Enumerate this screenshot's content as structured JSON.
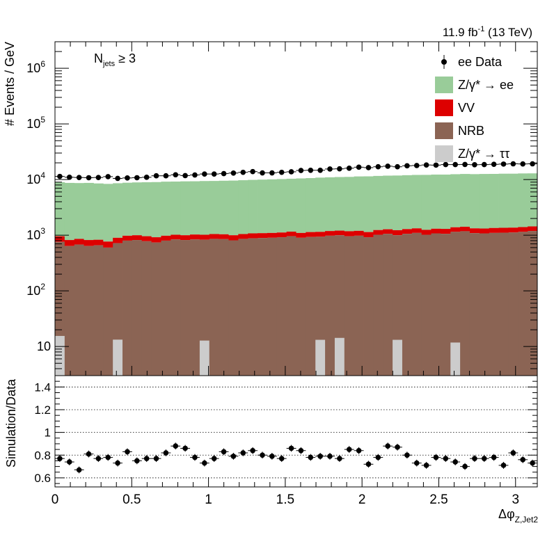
{
  "lumi_label": "11.9 fb-1 (13 TeV)",
  "lumi": {
    "main": "11.9 fb",
    "sup": "-1",
    "tail": " (13 TeV)"
  },
  "selection": {
    "base": "N",
    "sub": "jets",
    "tail": " ≥ 3"
  },
  "chart_data": [
    {
      "type": "bar",
      "stacked": true,
      "log_y": true,
      "ylim": [
        3,
        3000000
      ],
      "xlim": [
        0,
        3.1416
      ],
      "ylabel": "# Events / GeV",
      "y_ticks": [
        {
          "value": 10,
          "base": "10",
          "exp": ""
        },
        {
          "value": 100,
          "base": "10",
          "exp": "2"
        },
        {
          "value": 1000,
          "base": "10",
          "exp": "3"
        },
        {
          "value": 10000,
          "base": "10",
          "exp": "4"
        },
        {
          "value": 100000,
          "base": "10",
          "exp": "5"
        },
        {
          "value": 1000000,
          "base": "10",
          "exp": "6"
        }
      ],
      "n_bins": 50,
      "legend_position": "top-right",
      "series": [
        {
          "name": "Z/γ* → ee",
          "color": "#99cc99",
          "values": [
            8000,
            7900,
            7800,
            7900,
            7700,
            7600,
            7700,
            7800,
            7900,
            8000,
            8100,
            8200,
            8200,
            8300,
            8300,
            8400,
            8400,
            8500,
            8600,
            8700,
            8800,
            8900,
            9000,
            9100,
            9200,
            9400,
            9500,
            9700,
            9800,
            9900,
            10000,
            10200,
            10300,
            10400,
            10500,
            10600,
            10700,
            10800,
            10900,
            11000,
            11000,
            11100,
            11200,
            11200,
            11300,
            11300,
            11400,
            11400,
            11500,
            11500
          ]
        },
        {
          "name": "VV",
          "color": "#dd0000",
          "values": [
            200,
            180,
            180,
            180,
            170,
            170,
            180,
            180,
            180,
            180,
            180,
            180,
            180,
            180,
            190,
            190,
            190,
            190,
            190,
            190,
            200,
            200,
            200,
            200,
            200,
            200,
            210,
            210,
            210,
            210,
            220,
            220,
            220,
            220,
            220,
            230,
            230,
            230,
            230,
            230,
            240,
            240,
            240,
            240,
            240,
            250,
            250,
            250,
            250,
            250
          ]
        },
        {
          "name": "NRB",
          "color": "#8b6454",
          "values": [
            760,
            640,
            680,
            640,
            660,
            600,
            720,
            800,
            820,
            780,
            740,
            800,
            840,
            820,
            840,
            830,
            860,
            850,
            810,
            860,
            880,
            890,
            900,
            920,
            960,
            900,
            930,
            940,
            980,
            1000,
            960,
            980,
            920,
            1020,
            1060,
            1000,
            1060,
            1100,
            1020,
            1080,
            1060,
            1150,
            1180,
            1090,
            1080,
            1100,
            1110,
            1120,
            1150,
            1190
          ]
        },
        {
          "name": "Z/γ* → ττ",
          "color": "#cccccc",
          "values": [
            15.5,
            0,
            0,
            0,
            0,
            0,
            13.3,
            0,
            0,
            0,
            0,
            0,
            0,
            0,
            0,
            12.8,
            0,
            0,
            0,
            0,
            0,
            0,
            0,
            0,
            0,
            0,
            0,
            13.2,
            0,
            14.3,
            0,
            0,
            0,
            0,
            0,
            13.2,
            0,
            0,
            0,
            0,
            0,
            11.8,
            0,
            0,
            0,
            0,
            0,
            0,
            0,
            0
          ]
        }
      ],
      "data": {
        "name": "ee Data",
        "values": [
          11400,
          11000,
          10900,
          10800,
          10900,
          11300,
          10500,
          10700,
          10800,
          11000,
          11700,
          11700,
          12200,
          11800,
          12100,
          12600,
          12600,
          12800,
          13100,
          13500,
          13900,
          13200,
          13200,
          13500,
          13800,
          14600,
          14700,
          14700,
          15500,
          15600,
          16000,
          16700,
          16400,
          17000,
          17400,
          17000,
          17700,
          17900,
          18300,
          18200,
          18600,
          18600,
          18700,
          18500,
          18600,
          18800,
          19000,
          19200,
          19100,
          19200
        ]
      }
    },
    {
      "type": "scatter",
      "xlabel": "Δφ Z,Jet2",
      "ylabel": "Simulation/Data",
      "ylim": [
        0.52,
        1.5
      ],
      "xlim": [
        0,
        3.1416
      ],
      "x_ticks": [
        0,
        0.5,
        1,
        1.5,
        2,
        2.5,
        3
      ],
      "y_ticks": [
        0.6,
        0.8,
        1,
        1.2,
        1.4
      ],
      "y_grid": "dotted",
      "values": [
        0.77,
        0.74,
        0.67,
        0.81,
        0.77,
        0.78,
        0.73,
        0.83,
        0.75,
        0.77,
        0.77,
        0.82,
        0.88,
        0.86,
        0.78,
        0.73,
        0.77,
        0.83,
        0.79,
        0.82,
        0.84,
        0.8,
        0.79,
        0.77,
        0.86,
        0.84,
        0.78,
        0.79,
        0.79,
        0.77,
        0.85,
        0.84,
        0.72,
        0.78,
        0.88,
        0.87,
        0.8,
        0.73,
        0.71,
        0.78,
        0.77,
        0.74,
        0.7,
        0.77,
        0.77,
        0.78,
        0.71,
        0.82,
        0.76,
        0.73
      ],
      "errors": [
        0.03,
        0.03,
        0.03,
        0.03,
        0.03,
        0.03,
        0.03,
        0.03,
        0.03,
        0.03,
        0.03,
        0.03,
        0.03,
        0.03,
        0.03,
        0.03,
        0.03,
        0.03,
        0.03,
        0.03,
        0.03,
        0.03,
        0.03,
        0.03,
        0.03,
        0.03,
        0.03,
        0.03,
        0.03,
        0.03,
        0.03,
        0.03,
        0.03,
        0.03,
        0.03,
        0.03,
        0.03,
        0.03,
        0.03,
        0.03,
        0.03,
        0.03,
        0.03,
        0.03,
        0.03,
        0.03,
        0.03,
        0.03,
        0.03,
        0.03
      ]
    }
  ]
}
